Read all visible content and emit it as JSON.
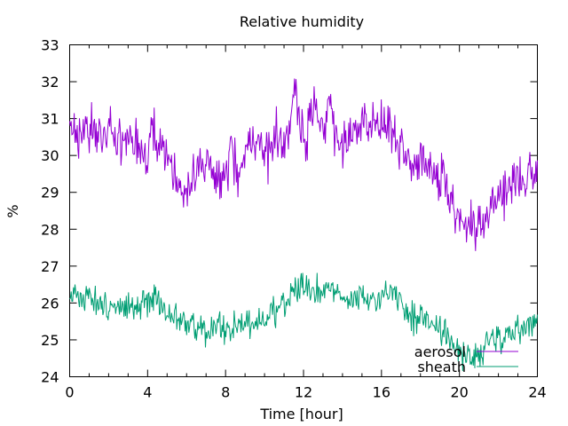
{
  "chart_data": {
    "type": "line",
    "title": "Relative humidity",
    "xlabel": "Time [hour]",
    "ylabel": "%",
    "xlim": [
      0,
      24
    ],
    "ylim": [
      24,
      33
    ],
    "xticks": [
      0,
      4,
      8,
      12,
      16,
      20,
      24
    ],
    "yticks": [
      24,
      25,
      26,
      27,
      28,
      29,
      30,
      31,
      32,
      33
    ],
    "grid": false,
    "legend_position": "bottom-right",
    "series": [
      {
        "name": "aerosol",
        "color": "#9400d3",
        "x": [
          0,
          0.5,
          1,
          1.5,
          2,
          2.5,
          3,
          3.5,
          3.9,
          4.2,
          4.5,
          5,
          5.3,
          5.6,
          5.9,
          6.1,
          6.5,
          7,
          7.5,
          8,
          8.3,
          8.7,
          9.2,
          9.5,
          10,
          10.2,
          10.6,
          11,
          11.3,
          11.5,
          11.8,
          12,
          12.3,
          12.6,
          13,
          13.3,
          13.6,
          14,
          14.5,
          15,
          15.5,
          16,
          16.5,
          17,
          17.5,
          18,
          18.5,
          19,
          19.5,
          20,
          20.4,
          20.8,
          21.2,
          21.6,
          22,
          22.5,
          23,
          23.5,
          24
        ],
        "y": [
          31,
          30.6,
          30.8,
          30.5,
          30.6,
          30.3,
          30.4,
          30.5,
          29.9,
          31,
          30.2,
          30,
          29.5,
          29.2,
          28.6,
          29.3,
          29.4,
          29.6,
          29.3,
          29.2,
          30.2,
          29.3,
          30.8,
          30.2,
          30.1,
          29.9,
          30.8,
          30,
          30.6,
          32.2,
          31,
          30.3,
          30.8,
          31.5,
          30.6,
          31.8,
          30.5,
          30.2,
          30.6,
          30.8,
          30.7,
          31.1,
          30.5,
          30.1,
          29.7,
          29.9,
          29.6,
          29.4,
          28.8,
          28.3,
          28.1,
          27.9,
          28.4,
          28.6,
          28.9,
          29.1,
          29.4,
          29.5,
          29.3
        ]
      },
      {
        "name": "sheath",
        "color": "#009e73",
        "x": [
          0,
          0.5,
          1,
          1.5,
          2,
          2.5,
          3,
          3.5,
          4,
          4.5,
          5,
          5.5,
          6,
          6.5,
          7,
          7.5,
          8,
          8.5,
          9,
          9.5,
          10,
          10.5,
          11,
          11.5,
          12,
          12.5,
          13,
          13.5,
          14,
          14.5,
          15,
          15.5,
          16,
          16.5,
          17,
          17.5,
          18,
          18.5,
          19,
          19.5,
          20,
          20.5,
          21,
          21.5,
          22,
          22.5,
          23,
          23.5,
          24
        ],
        "y": [
          26.2,
          26.1,
          26.3,
          26,
          25.8,
          25.9,
          26,
          25.9,
          26.1,
          26.2,
          25.8,
          25.6,
          25.4,
          25.3,
          25.2,
          25.3,
          25.3,
          25.4,
          25.5,
          25.4,
          25.6,
          25.8,
          26,
          26.4,
          26.5,
          26.4,
          26.3,
          26.4,
          26.2,
          26.1,
          26.2,
          26,
          26.1,
          26.3,
          26,
          25.6,
          25.6,
          25.5,
          25.3,
          25.1,
          24.7,
          24.5,
          24.6,
          25,
          25,
          25.2,
          25.3,
          25.4,
          25.6
        ]
      }
    ]
  }
}
